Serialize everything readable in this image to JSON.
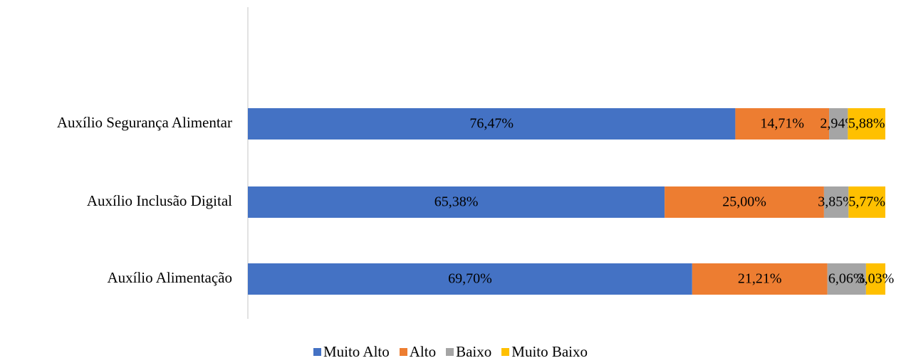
{
  "chart_data": {
    "type": "stacked-bar-horizontal",
    "categories": [
      "Auxílio Segurança Alimentar",
      "Auxílio Inclusão Digital",
      "Auxílio Alimentação"
    ],
    "series": [
      {
        "name": "Muito Alto",
        "color": "#4472c4",
        "values": [
          76.47,
          65.38,
          69.7
        ],
        "value_labels": [
          "76,47%",
          "65,38%",
          "69,70%"
        ]
      },
      {
        "name": "Alto",
        "color": "#ed7d31",
        "values": [
          14.71,
          25.0,
          21.21
        ],
        "value_labels": [
          "14,71%",
          "25,00%",
          "21,21%"
        ]
      },
      {
        "name": "Baixo",
        "color": "#a5a5a5",
        "values": [
          2.94,
          3.85,
          6.06
        ],
        "value_labels": [
          "2,94%",
          "3,85%",
          "6,06%"
        ]
      },
      {
        "name": "Muito Baixo",
        "color": "#ffc000",
        "values": [
          5.88,
          5.77,
          3.03
        ],
        "value_labels": [
          "5,88%",
          "5,77%",
          "3,03%"
        ]
      }
    ],
    "legend": "bottom"
  }
}
